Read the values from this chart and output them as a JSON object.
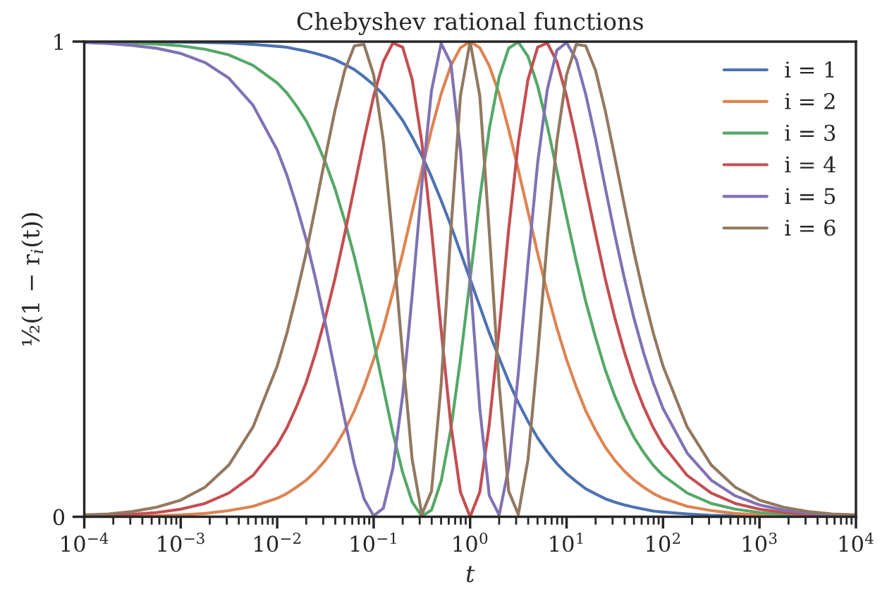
{
  "chart_data": {
    "type": "line",
    "title": "Chebyshev rational functions",
    "xlabel": "t",
    "ylabel": "½(1 − r$_{i}$(t))",
    "log": "x",
    "xlim": [
      0.0001,
      10000
    ],
    "ylim": [
      0,
      1
    ],
    "yticks": [
      0,
      1
    ],
    "xticks": [
      {
        "value": 0.0001,
        "label": "10$^{−4}$"
      },
      {
        "value": 0.001,
        "label": "10$^{−3}$"
      },
      {
        "value": 0.01,
        "label": "10$^{−2}$"
      },
      {
        "value": 0.1,
        "label": "10$^{−1}$"
      },
      {
        "value": 1,
        "label": "10$^{0}$"
      },
      {
        "value": 10,
        "label": "10$^{1}$"
      },
      {
        "value": 100,
        "label": "10$^{2}$"
      },
      {
        "value": 1000,
        "label": "10$^{3}$"
      },
      {
        "value": 10000,
        "label": "10$^{4}$"
      }
    ],
    "grid": false,
    "legend": "top right",
    "marker": "none",
    "line_style": "solid",
    "x": [
      0.0001,
      0.000178,
      0.000316,
      0.000562,
      0.001,
      0.00178,
      0.00316,
      0.00562,
      0.01,
      0.0126,
      0.0158,
      0.02,
      0.0251,
      0.0316,
      0.0398,
      0.0501,
      0.0631,
      0.0794,
      0.1,
      0.126,
      0.158,
      0.2,
      0.251,
      0.316,
      0.398,
      0.501,
      0.631,
      0.794,
      1,
      1.26,
      1.58,
      2.0,
      2.51,
      3.16,
      3.98,
      5.01,
      6.31,
      7.94,
      10,
      12.6,
      15.8,
      20,
      25.1,
      31.6,
      39.8,
      50.1,
      63.1,
      79.4,
      100,
      178,
      316,
      562,
      1000,
      1778,
      3162,
      5623,
      10000
    ],
    "series": [
      {
        "name": "i = 1",
        "color": "#4c72b0",
        "values": [
          1,
          1,
          1,
          0.999,
          0.999,
          0.998,
          0.997,
          0.994,
          0.99,
          0.988,
          0.984,
          0.98,
          0.975,
          0.969,
          0.962,
          0.952,
          0.941,
          0.926,
          0.909,
          0.888,
          0.863,
          0.834,
          0.799,
          0.76,
          0.715,
          0.666,
          0.613,
          0.557,
          0.5,
          0.443,
          0.387,
          0.334,
          0.285,
          0.24,
          0.201,
          0.166,
          0.137,
          0.112,
          0.091,
          0.074,
          0.059,
          0.048,
          0.038,
          0.031,
          0.025,
          0.02,
          0.016,
          0.012,
          0.01,
          0.006,
          0.003,
          0.002,
          0.001,
          0.001,
          0,
          0,
          0
        ]
      },
      {
        "name": "i = 2",
        "color": "#dd8452",
        "values": [
          0,
          0.001,
          0.001,
          0.002,
          0.004,
          0.007,
          0.013,
          0.022,
          0.039,
          0.049,
          0.062,
          0.077,
          0.096,
          0.119,
          0.147,
          0.182,
          0.223,
          0.273,
          0.331,
          0.397,
          0.472,
          0.555,
          0.642,
          0.73,
          0.815,
          0.89,
          0.949,
          0.987,
          1,
          0.987,
          0.949,
          0.89,
          0.815,
          0.73,
          0.642,
          0.555,
          0.472,
          0.397,
          0.331,
          0.273,
          0.223,
          0.182,
          0.147,
          0.119,
          0.096,
          0.077,
          0.062,
          0.049,
          0.039,
          0.022,
          0.013,
          0.007,
          0.004,
          0.002,
          0.001,
          null,
          null
        ]
      },
      {
        "name": "i = 3",
        "color": "#55a868",
        "values": [
          0.999,
          0.998,
          0.997,
          0.995,
          0.991,
          0.984,
          0.972,
          0.95,
          0.913,
          0.892,
          0.865,
          0.833,
          0.793,
          0.746,
          0.69,
          0.623,
          0.547,
          0.462,
          0.369,
          0.272,
          0.177,
          0.093,
          0.031,
          0.001,
          0.014,
          0.075,
          0.184,
          0.331,
          0.5,
          0.669,
          0.816,
          0.925,
          0.986,
          0.999,
          0.969,
          0.907,
          0.823,
          0.728,
          0.631,
          0.538,
          0.453,
          0.377,
          0.31,
          0.254,
          0.207,
          0.167,
          0.135,
          0.108,
          0.087,
          0.05,
          0.028,
          0.016,
          0.009,
          0.005,
          0.003,
          0.002,
          0.001
        ]
      },
      {
        "name": "i = 4",
        "color": "#c44e52",
        "values": [
          0.002,
          0.003,
          0.005,
          0.009,
          0.016,
          0.028,
          0.05,
          0.087,
          0.151,
          0.187,
          0.231,
          0.283,
          0.346,
          0.419,
          0.502,
          0.595,
          0.694,
          0.793,
          0.885,
          0.958,
          0.997,
          0.988,
          0.92,
          0.788,
          0.604,
          0.393,
          0.194,
          0.052,
          0,
          0.052,
          0.194,
          0.393,
          0.604,
          0.788,
          0.92,
          0.988,
          0.997,
          0.958,
          0.885,
          0.793,
          0.694,
          0.595,
          0.502,
          0.419,
          0.346,
          0.283,
          0.231,
          0.187,
          0.151,
          0.087,
          0.05,
          0.028,
          0.016,
          0.009,
          0.005,
          0.003,
          0.002
        ]
      },
      {
        "name": "i = 5",
        "color": "#8172b3",
        "values": [
          0.998,
          0.996,
          0.992,
          0.986,
          0.975,
          0.956,
          0.923,
          0.866,
          0.772,
          0.719,
          0.656,
          0.583,
          0.499,
          0.406,
          0.306,
          0.205,
          0.111,
          0.038,
          0.002,
          0.018,
          0.101,
          0.256,
          0.467,
          0.699,
          0.897,
          0.996,
          0.955,
          0.772,
          0.5,
          0.228,
          0.045,
          0.004,
          0.103,
          0.301,
          0.533,
          0.744,
          0.899,
          0.982,
          0.998,
          0.962,
          0.889,
          0.795,
          0.694,
          0.594,
          0.501,
          0.417,
          0.344,
          0.281,
          0.228,
          0.134,
          0.077,
          0.044,
          0.025,
          0.014,
          0.008,
          0.004,
          0.002
        ]
      },
      {
        "name": "i = 6",
        "color": "#937860",
        "values": [
          0.004,
          0.006,
          0.011,
          0.02,
          0.035,
          0.062,
          0.109,
          0.189,
          0.317,
          0.386,
          0.466,
          0.556,
          0.655,
          0.757,
          0.856,
          0.939,
          0.991,
          0.994,
          0.93,
          0.791,
          0.582,
          0.339,
          0.12,
          0.005,
          0.054,
          0.278,
          0.6,
          0.886,
          1,
          0.886,
          0.6,
          0.278,
          0.054,
          0.005,
          0.12,
          0.339,
          0.582,
          0.791,
          0.93,
          0.994,
          0.991,
          0.939,
          0.856,
          0.757,
          0.655,
          0.556,
          0.466,
          0.386,
          0.317,
          0.189,
          0.109,
          0.062,
          0.035,
          0.02,
          0.011,
          0.006,
          0.004
        ]
      }
    ]
  }
}
